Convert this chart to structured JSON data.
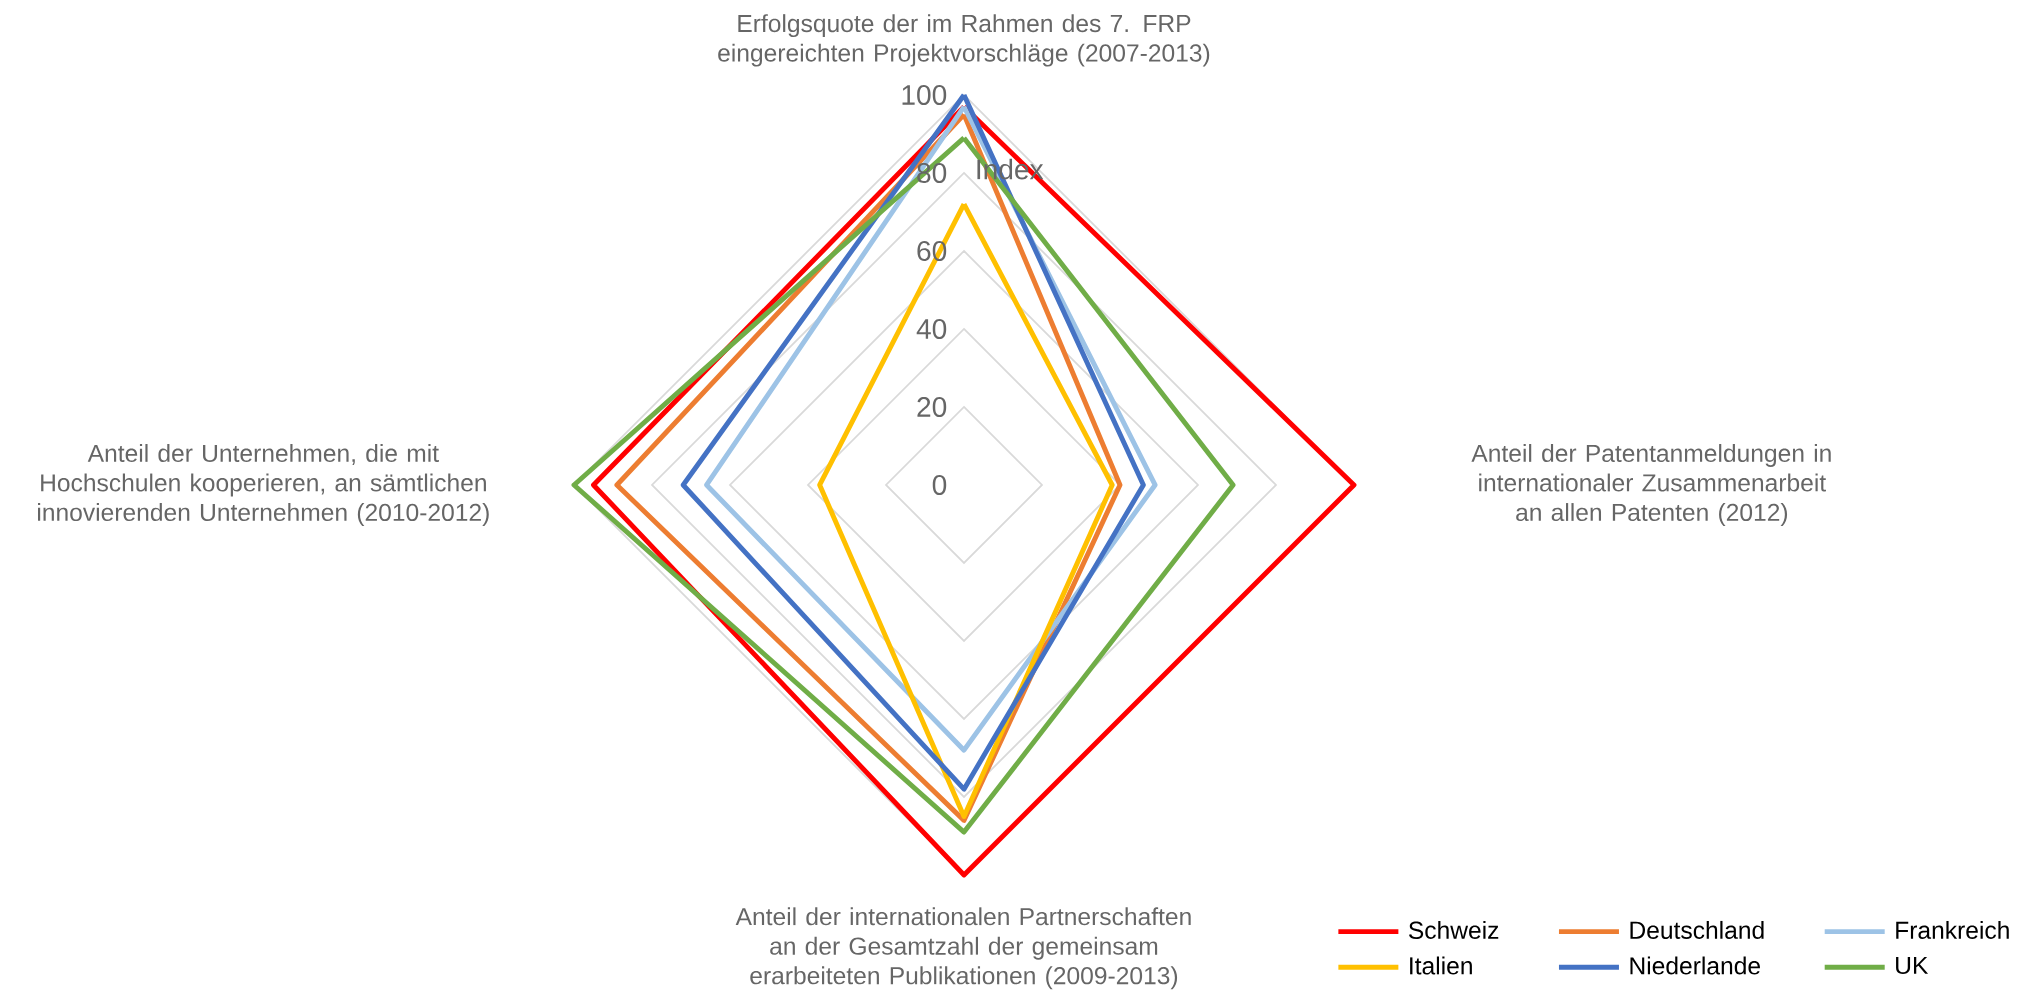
{
  "chart_data": {
    "type": "radar",
    "ylabel": "Index",
    "categories": [
      "Erfolgsquote der im Rahmen des 7. FRP eingereichten Projektvorschläge (2007-2013)",
      "Anteil der Patentanmeldungen in internationaler Zusammenarbeit an allen Patenten (2012)",
      "Anteil der internationalen Partnerschaften an der Gesamtzahl der gemeinsam erarbeiteten Publikationen (2009-2013)",
      "Anteil der Unternehmen, die mit Hochschulen kooperieren, an sämtlichen innovierenden Unternehmen (2010-2012)"
    ],
    "series": [
      {
        "name": "Schweiz",
        "color": "#ff0000",
        "values": [
          97,
          100,
          100,
          95
        ]
      },
      {
        "name": "Deutschland",
        "color": "#ed7d31",
        "values": [
          95,
          40,
          86,
          89
        ]
      },
      {
        "name": "Frankreich",
        "color": "#9dc3e6",
        "values": [
          97,
          49,
          68,
          66
        ]
      },
      {
        "name": "Italien",
        "color": "#ffc000",
        "values": [
          72,
          38,
          85,
          37
        ]
      },
      {
        "name": "Niederlande",
        "color": "#4472c4",
        "values": [
          100,
          46,
          78,
          72
        ]
      },
      {
        "name": "UK",
        "color": "#70ad47",
        "values": [
          89,
          69,
          89,
          100
        ]
      }
    ],
    "ylim": [
      0,
      100
    ],
    "yticks": [
      0,
      20,
      40,
      60,
      80,
      100
    ],
    "grid": true,
    "legend": "bottom right"
  }
}
